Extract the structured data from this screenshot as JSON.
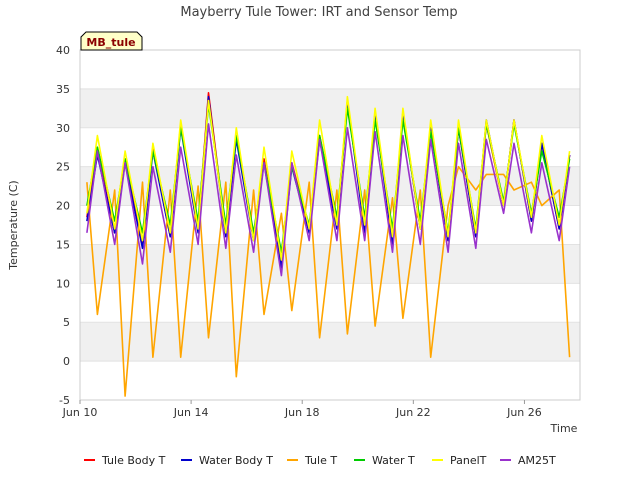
{
  "chart_data": {
    "type": "line",
    "title": "Mayberry Tule Tower: IRT and Sensor Temp",
    "xlabel": "Time",
    "ylabel": "Temperature (C)",
    "badge": "MB_tule",
    "xlim": [
      "2023-06-10",
      "2023-06-28"
    ],
    "ylim": [
      -5,
      40
    ],
    "yticks": [
      -5,
      0,
      5,
      10,
      15,
      20,
      25,
      30,
      35,
      40
    ],
    "xticks": [
      {
        "date": "2023-06-10",
        "label": "Jun 10"
      },
      {
        "date": "2023-06-14",
        "label": "Jun 14"
      },
      {
        "date": "2023-06-18",
        "label": "Jun 18"
      },
      {
        "date": "2023-06-22",
        "label": "Jun 22"
      },
      {
        "date": "2023-06-26",
        "label": "Jun 26"
      }
    ],
    "grid": "horizontal bands",
    "legend_position": "bottom",
    "sample_times": [
      "2023-06-10 06:00",
      "2023-06-10 15:00",
      "2023-06-11 06:00",
      "2023-06-11 15:00",
      "2023-06-12 06:00",
      "2023-06-12 15:00",
      "2023-06-13 06:00",
      "2023-06-13 15:00",
      "2023-06-14 06:00",
      "2023-06-14 15:00",
      "2023-06-15 06:00",
      "2023-06-15 15:00",
      "2023-06-16 06:00",
      "2023-06-16 15:00",
      "2023-06-17 06:00",
      "2023-06-17 15:00",
      "2023-06-18 06:00",
      "2023-06-18 15:00",
      "2023-06-19 06:00",
      "2023-06-19 15:00",
      "2023-06-20 06:00",
      "2023-06-20 15:00",
      "2023-06-21 06:00",
      "2023-06-21 15:00",
      "2023-06-22 06:00",
      "2023-06-22 15:00",
      "2023-06-23 06:00",
      "2023-06-23 15:00",
      "2023-06-24 06:00",
      "2023-06-24 15:00",
      "2023-06-25 06:00",
      "2023-06-25 15:00",
      "2023-06-26 06:00",
      "2023-06-26 15:00",
      "2023-06-27 06:00",
      "2023-06-27 15:00"
    ],
    "series": [
      {
        "name": "Tule Body T",
        "color": "#ff0000",
        "values": [
          18.5,
          27.0,
          16.5,
          26.0,
          15.0,
          27.5,
          16.0,
          30.5,
          17.0,
          34.5,
          16.5,
          29.0,
          16.0,
          26.0,
          12.5,
          25.5,
          17.0,
          29.0,
          17.5,
          33.5,
          17.0,
          32.0,
          15.5,
          32.0,
          17.0,
          30.0,
          15.5,
          30.0,
          16.0,
          30.5,
          20.0,
          31.0,
          18.0,
          28.0,
          17.0,
          26.5
        ]
      },
      {
        "name": "Water Body T",
        "color": "#0000cc",
        "values": [
          18.0,
          26.5,
          16.5,
          25.5,
          14.5,
          27.0,
          16.0,
          30.0,
          16.5,
          34.0,
          16.0,
          28.5,
          15.5,
          25.5,
          12.0,
          25.0,
          16.5,
          28.5,
          17.0,
          33.5,
          16.5,
          32.0,
          15.0,
          32.0,
          17.0,
          30.0,
          15.5,
          30.0,
          16.0,
          31.0,
          20.0,
          31.0,
          18.0,
          28.0,
          17.0,
          26.5
        ]
      },
      {
        "name": "Tule T",
        "color": "#ffa500",
        "values": [
          23.0,
          6.0,
          22.0,
          -4.5,
          23.0,
          0.5,
          22.0,
          0.5,
          22.5,
          3.0,
          23.0,
          -2.0,
          22.0,
          6.0,
          19.0,
          6.5,
          23.0,
          3.0,
          22.0,
          3.5,
          22.0,
          4.5,
          21.0,
          5.5,
          22.0,
          0.5,
          20.0,
          25.0,
          22.0,
          24.0,
          24.0,
          22.0,
          23.0,
          20.0,
          22.0,
          0.5
        ]
      },
      {
        "name": "Water T",
        "color": "#00cc00",
        "values": [
          20.0,
          27.5,
          18.0,
          26.0,
          16.5,
          27.0,
          17.5,
          30.0,
          18.0,
          33.0,
          17.5,
          29.0,
          16.5,
          25.5,
          14.0,
          25.0,
          17.5,
          29.0,
          18.5,
          32.5,
          18.5,
          31.0,
          17.0,
          31.0,
          18.0,
          29.5,
          16.5,
          30.0,
          17.0,
          30.5,
          20.5,
          30.5,
          19.0,
          27.0,
          18.5,
          26.0
        ]
      },
      {
        "name": "PanelT",
        "color": "#ffff00",
        "values": [
          19.0,
          29.0,
          17.0,
          27.0,
          15.5,
          28.0,
          16.5,
          31.0,
          17.0,
          33.5,
          16.5,
          30.0,
          15.5,
          27.5,
          13.0,
          27.0,
          17.0,
          31.0,
          17.5,
          34.0,
          17.5,
          32.5,
          16.0,
          32.5,
          17.0,
          31.0,
          16.0,
          31.0,
          16.5,
          31.0,
          20.0,
          31.0,
          18.5,
          29.0,
          17.5,
          27.0
        ]
      },
      {
        "name": "AM25T",
        "color": "#9932cc",
        "values": [
          16.5,
          27.0,
          15.0,
          25.5,
          12.5,
          25.0,
          14.0,
          27.5,
          15.0,
          30.5,
          14.5,
          26.5,
          14.0,
          25.5,
          11.0,
          25.5,
          15.5,
          28.5,
          15.5,
          30.0,
          15.5,
          29.5,
          14.0,
          29.0,
          15.0,
          28.5,
          14.0,
          28.0,
          14.5,
          28.5,
          19.0,
          28.0,
          16.5,
          25.5,
          15.5,
          25.0
        ]
      }
    ]
  }
}
